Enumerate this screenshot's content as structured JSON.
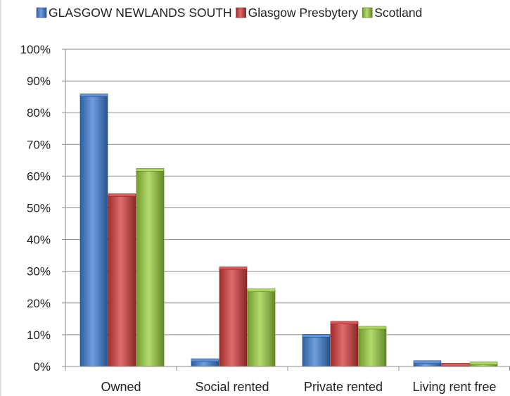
{
  "chart_data": {
    "type": "bar",
    "categories": [
      "Owned",
      "Social rented",
      "Private rented",
      "Living rent free"
    ],
    "series": [
      {
        "name": "GLASGOW NEWLANDS SOUTH",
        "color": "#3f7fd6",
        "values": [
          85.5,
          2.0,
          9.7,
          1.4
        ]
      },
      {
        "name": "Glasgow Presbytery",
        "color": "#d63b3b",
        "values": [
          54.0,
          31.0,
          13.8,
          0.6
        ]
      },
      {
        "name": "Scotland",
        "color": "#9bcf3d",
        "values": [
          62.0,
          24.0,
          12.2,
          1.0
        ]
      }
    ],
    "y_ticks": [
      "0%",
      "10%",
      "20%",
      "30%",
      "40%",
      "50%",
      "60%",
      "70%",
      "80%",
      "90%",
      "100%"
    ],
    "ylim": [
      0,
      100
    ],
    "grid": true,
    "legend_position": "top"
  }
}
